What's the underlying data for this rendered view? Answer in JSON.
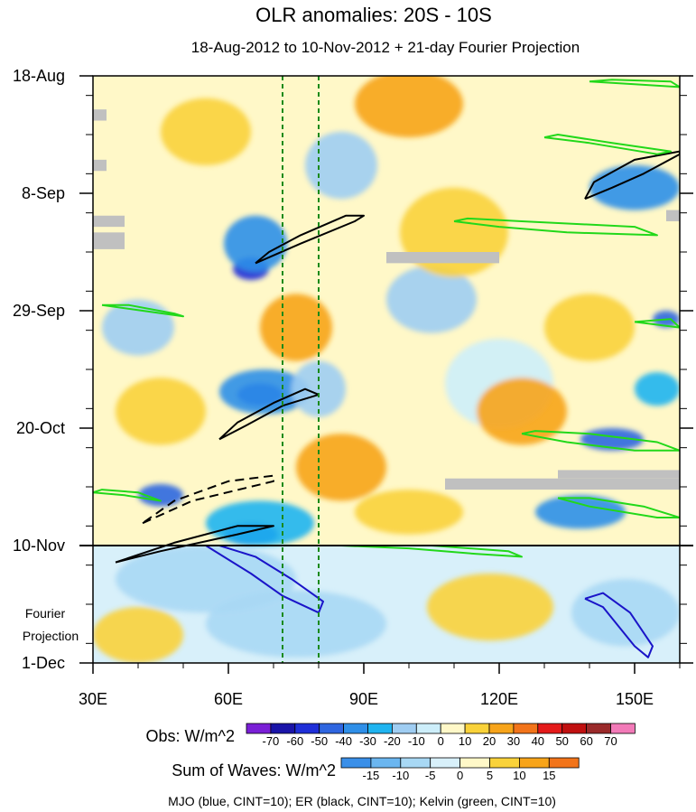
{
  "chart_data": {
    "type": "heatmap",
    "title": "OLR anomalies: 20S - 10S",
    "subtitle": "18-Aug-2012 to 10-Nov-2012 + 21-day Fourier Projection",
    "x_ticks": [
      {
        "value": 30,
        "label": "30E"
      },
      {
        "value": 60,
        "label": "60E"
      },
      {
        "value": 90,
        "label": "90E"
      },
      {
        "value": 120,
        "label": "120E"
      },
      {
        "value": 150,
        "label": "150E"
      }
    ],
    "x_range_deg_east": [
      30,
      160
    ],
    "y_ticks": [
      {
        "day": 0,
        "label": "18-Aug"
      },
      {
        "day": 21,
        "label": "8-Sep"
      },
      {
        "day": 42,
        "label": "29-Sep"
      },
      {
        "day": 63,
        "label": "20-Oct"
      },
      {
        "day": 84,
        "label": "10-Nov"
      },
      {
        "day": 105,
        "label": "1-Dec"
      }
    ],
    "y_range_days": [
      0,
      105
    ],
    "fourier_projection_label": [
      "Fourier",
      "Projection"
    ],
    "projection_start_day": 84,
    "vertical_reference_lines_deg_east": [
      72,
      80
    ],
    "obs_legend": {
      "label": "Obs: W/m^2",
      "levels": [
        "-70",
        "-60",
        "-50",
        "-40",
        "-30",
        "-20",
        "-10",
        "0",
        "10",
        "20",
        "30",
        "40",
        "50",
        "60",
        "70"
      ],
      "colors": [
        "#7a1fd6",
        "#1a14a8",
        "#1f2fd8",
        "#2f66e0",
        "#2f8fe8",
        "#1fb4f0",
        "#9fcdf2",
        "#cdeefa",
        "#fff8c8",
        "#f9d23a",
        "#f7a41a",
        "#f2741a",
        "#e41a1a",
        "#c01010",
        "#9a2a2a",
        "#f27ab8"
      ]
    },
    "waves_legend": {
      "label": "Sum of Waves: W/m^2",
      "levels": [
        "-15",
        "-10",
        "-5",
        "0",
        "5",
        "10",
        "15"
      ],
      "colors": [
        "#3a8fe8",
        "#6bb6f0",
        "#a8d8f4",
        "#d8f0fa",
        "#fff8c8",
        "#f9d23a",
        "#f7a41a",
        "#f2741a"
      ]
    },
    "footnote": "MJO (blue, CINT=10); ER (black, CINT=10); Kelvin (green, CINT=10)",
    "contours": [
      {
        "wave": "ER",
        "color": "#000000",
        "dashed": false,
        "points": [
          [
            58,
            65
          ],
          [
            64,
            62.5
          ],
          [
            72,
            59
          ],
          [
            80,
            57
          ],
          [
            77,
            56
          ],
          [
            70,
            58.5
          ],
          [
            62,
            62
          ],
          [
            58,
            65
          ]
        ]
      },
      {
        "wave": "ER",
        "color": "#000000",
        "dashed": false,
        "points": [
          [
            66,
            33.5
          ],
          [
            76,
            30
          ],
          [
            88,
            26
          ],
          [
            90,
            25
          ],
          [
            86,
            25
          ],
          [
            76,
            28.5
          ],
          [
            69,
            31.5
          ],
          [
            66,
            33.5
          ]
        ]
      },
      {
        "wave": "ER",
        "color": "#000000",
        "dashed": true,
        "points": [
          [
            41,
            80
          ],
          [
            52,
            76
          ],
          [
            70,
            72.5
          ],
          [
            70,
            71.5
          ],
          [
            60,
            72.5
          ],
          [
            48,
            76
          ],
          [
            41,
            80
          ]
        ]
      },
      {
        "wave": "ER",
        "color": "#000000",
        "dashed": false,
        "points": [
          [
            35,
            87
          ],
          [
            45,
            85
          ],
          [
            62,
            82
          ],
          [
            70,
            80.5
          ],
          [
            62,
            80.5
          ],
          [
            48,
            83.5
          ],
          [
            35,
            87
          ]
        ]
      },
      {
        "wave": "ER",
        "color": "#000000",
        "dashed": false,
        "points": [
          [
            139,
            22
          ],
          [
            145,
            20
          ],
          [
            152,
            17.5
          ],
          [
            160,
            14
          ],
          [
            160,
            13.5
          ],
          [
            150,
            15
          ],
          [
            141,
            19
          ],
          [
            139,
            22
          ]
        ]
      },
      {
        "wave": "MJO",
        "color": "#1a14c8",
        "dashed": false,
        "points": [
          [
            55,
            84
          ],
          [
            65,
            89
          ],
          [
            72,
            93
          ],
          [
            80,
            96
          ],
          [
            81,
            94
          ],
          [
            74,
            90
          ],
          [
            66,
            86
          ],
          [
            58,
            84
          ],
          [
            55,
            84
          ]
        ]
      },
      {
        "wave": "MJO",
        "color": "#1a14c8",
        "dashed": false,
        "points": [
          [
            139,
            93.5
          ],
          [
            143,
            95
          ],
          [
            150,
            102
          ],
          [
            153,
            104
          ],
          [
            154,
            102
          ],
          [
            149,
            96
          ],
          [
            143,
            92.5
          ],
          [
            139,
            93.5
          ]
        ]
      },
      {
        "wave": "Kelvin",
        "color": "#22d81a",
        "dashed": false,
        "points": [
          [
            32,
            41
          ],
          [
            41,
            42
          ],
          [
            50,
            43
          ],
          [
            48,
            42.5
          ],
          [
            38,
            41
          ],
          [
            32,
            41
          ]
        ]
      },
      {
        "wave": "Kelvin",
        "color": "#22d81a",
        "dashed": false,
        "points": [
          [
            130,
            11
          ],
          [
            140,
            12
          ],
          [
            155,
            14
          ],
          [
            158,
            13.5
          ],
          [
            145,
            12
          ],
          [
            133,
            10.5
          ],
          [
            130,
            11
          ]
        ]
      },
      {
        "wave": "Kelvin",
        "color": "#22d81a",
        "dashed": false,
        "points": [
          [
            110,
            26
          ],
          [
            120,
            27
          ],
          [
            135,
            28
          ],
          [
            155,
            28.5
          ],
          [
            150,
            27
          ],
          [
            125,
            26
          ],
          [
            113,
            25.5
          ],
          [
            110,
            26
          ]
        ]
      },
      {
        "wave": "Kelvin",
        "color": "#22d81a",
        "dashed": false,
        "points": [
          [
            125,
            64
          ],
          [
            135,
            65.5
          ],
          [
            150,
            67
          ],
          [
            160,
            67
          ],
          [
            155,
            65.5
          ],
          [
            140,
            64
          ],
          [
            128,
            63.5
          ],
          [
            125,
            64
          ]
        ]
      },
      {
        "wave": "Kelvin",
        "color": "#22d81a",
        "dashed": false,
        "points": [
          [
            30,
            74.5
          ],
          [
            37,
            75
          ],
          [
            45,
            76
          ],
          [
            40,
            74.5
          ],
          [
            32,
            74
          ],
          [
            30,
            74.5
          ]
        ]
      },
      {
        "wave": "Kelvin",
        "color": "#22d81a",
        "dashed": false,
        "points": [
          [
            133,
            75.5
          ],
          [
            140,
            77
          ],
          [
            155,
            79
          ],
          [
            160,
            79
          ],
          [
            152,
            77
          ],
          [
            140,
            75.5
          ],
          [
            133,
            75.5
          ]
        ]
      },
      {
        "wave": "Kelvin",
        "color": "#22d81a",
        "dashed": false,
        "points": [
          [
            85,
            84
          ],
          [
            100,
            84.5
          ],
          [
            115,
            85.5
          ],
          [
            125,
            86
          ],
          [
            122,
            85
          ],
          [
            105,
            84
          ],
          [
            85,
            84
          ]
        ]
      },
      {
        "wave": "Kelvin",
        "color": "#22d81a",
        "dashed": false,
        "points": [
          [
            140,
            1
          ],
          [
            150,
            1.5
          ],
          [
            160,
            2
          ],
          [
            158,
            1
          ],
          [
            145,
            0.7
          ],
          [
            140,
            1
          ]
        ]
      },
      {
        "wave": "Kelvin",
        "color": "#22d81a",
        "dashed": false,
        "points": [
          [
            150,
            44
          ],
          [
            160,
            45
          ],
          [
            158,
            43.5
          ],
          [
            150,
            44
          ]
        ]
      }
    ],
    "missing_data_boxes": [
      {
        "lon": [
          95,
          120
        ],
        "days": [
          31.5,
          33.5
        ]
      },
      {
        "lon": [
          108,
          160
        ],
        "days": [
          72,
          74
        ]
      },
      {
        "lon": [
          133,
          160
        ],
        "days": [
          70.5,
          72
        ]
      },
      {
        "lon": [
          30,
          37
        ],
        "days": [
          29,
          31
        ]
      },
      {
        "lon": [
          30,
          37
        ],
        "days": [
          28,
          30
        ]
      },
      {
        "lon": [
          30,
          37
        ],
        "days": [
          25,
          27
        ]
      },
      {
        "lon": [
          30,
          33
        ],
        "days": [
          15,
          17
        ]
      },
      {
        "lon": [
          30,
          33
        ],
        "days": [
          6,
          8
        ]
      },
      {
        "lon": [
          157,
          160
        ],
        "days": [
          24,
          26
        ]
      }
    ],
    "anomaly_features": [
      {
        "lon": 65,
        "day": 34.5,
        "value": -60,
        "r_lon": 4,
        "r_day": 2
      },
      {
        "lon": 66,
        "day": 30,
        "value": -35,
        "r_lon": 7,
        "r_day": 5
      },
      {
        "lon": 67,
        "day": 57,
        "value": -60,
        "r_lon": 5,
        "r_day": 2
      },
      {
        "lon": 68,
        "day": 56.5,
        "value": -35,
        "r_lon": 10,
        "r_day": 4
      },
      {
        "lon": 65,
        "day": 82,
        "value": -55,
        "r_lon": 6,
        "r_day": 2
      },
      {
        "lon": 67,
        "day": 80,
        "value": -30,
        "r_lon": 12,
        "r_day": 4
      },
      {
        "lon": 45,
        "day": 75,
        "value": -45,
        "r_lon": 5,
        "r_day": 2
      },
      {
        "lon": 150,
        "day": 20,
        "value": -35,
        "r_lon": 10,
        "r_day": 4
      },
      {
        "lon": 145,
        "day": 65,
        "value": -45,
        "r_lon": 7,
        "r_day": 2
      },
      {
        "lon": 157,
        "day": 43.5,
        "value": -50,
        "r_lon": 3,
        "r_day": 1.5
      },
      {
        "lon": 138,
        "day": 78,
        "value": -35,
        "r_lon": 10,
        "r_day": 3
      },
      {
        "lon": 155,
        "day": 56,
        "value": -30,
        "r_lon": 5,
        "r_day": 3
      },
      {
        "lon": 80,
        "day": 56,
        "value": -20,
        "r_lon": 6,
        "r_day": 5
      },
      {
        "lon": 85,
        "day": 16,
        "value": -15,
        "r_lon": 8,
        "r_day": 6
      },
      {
        "lon": 40,
        "day": 45,
        "value": -15,
        "r_lon": 8,
        "r_day": 5
      },
      {
        "lon": 105,
        "day": 40,
        "value": -12,
        "r_lon": 10,
        "r_day": 6
      },
      {
        "lon": 120,
        "day": 55,
        "value": -10,
        "r_lon": 12,
        "r_day": 8
      },
      {
        "lon": 100,
        "day": 5,
        "value": 20,
        "r_lon": 12,
        "r_day": 6
      },
      {
        "lon": 110,
        "day": 28,
        "value": 15,
        "r_lon": 12,
        "r_day": 8
      },
      {
        "lon": 85,
        "day": 70,
        "value": 25,
        "r_lon": 10,
        "r_day": 6
      },
      {
        "lon": 75,
        "day": 45,
        "value": 20,
        "r_lon": 8,
        "r_day": 6
      },
      {
        "lon": 125,
        "day": 60,
        "value": 20,
        "r_lon": 10,
        "r_day": 6
      },
      {
        "lon": 140,
        "day": 45,
        "value": 18,
        "r_lon": 10,
        "r_day": 6
      },
      {
        "lon": 45,
        "day": 60,
        "value": 15,
        "r_lon": 10,
        "r_day": 6
      },
      {
        "lon": 100,
        "day": 78,
        "value": 15,
        "r_lon": 12,
        "r_day": 4
      },
      {
        "lon": 55,
        "day": 10,
        "value": 12,
        "r_lon": 10,
        "r_day": 6
      }
    ],
    "projection_features": [
      {
        "lon": 55,
        "day": 90,
        "value": -10,
        "r_lon": 20,
        "r_day": 6
      },
      {
        "lon": 75,
        "day": 98,
        "value": -10,
        "r_lon": 20,
        "r_day": 6
      },
      {
        "lon": 148,
        "day": 96,
        "value": -8,
        "r_lon": 12,
        "r_day": 6
      },
      {
        "lon": 118,
        "day": 95,
        "value": 5,
        "r_lon": 14,
        "r_day": 6
      },
      {
        "lon": 40,
        "day": 100,
        "value": 5,
        "r_lon": 10,
        "r_day": 5
      }
    ]
  }
}
